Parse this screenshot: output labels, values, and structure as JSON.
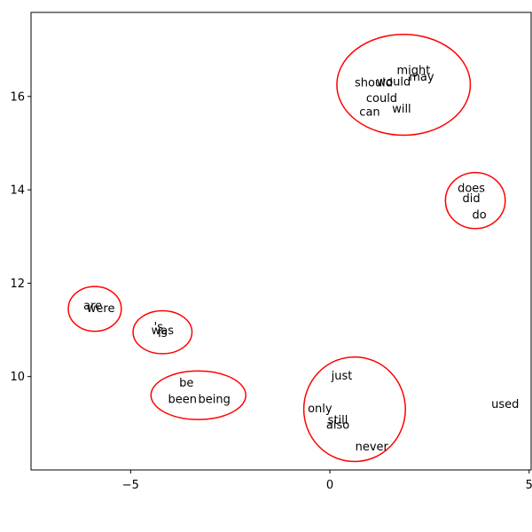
{
  "chart_data": {
    "type": "scatter",
    "title": "",
    "xlabel": "",
    "ylabel": "",
    "xlim": [
      -7.5,
      5.05
    ],
    "ylim": [
      8.0,
      17.8
    ],
    "xticks": [
      -5,
      0,
      5
    ],
    "yticks": [
      10,
      12,
      14,
      16
    ],
    "grid": false,
    "colors": {
      "text": "#000000",
      "cluster_outline": "#ff0000",
      "axes": "#000000",
      "background": "#ffffff"
    },
    "points": [
      {
        "label": "might",
        "x": 2.1,
        "y": 16.55
      },
      {
        "label": "may",
        "x": 2.3,
        "y": 16.4
      },
      {
        "label": "would",
        "x": 1.6,
        "y": 16.3
      },
      {
        "label": "should",
        "x": 1.1,
        "y": 16.28
      },
      {
        "label": "could",
        "x": 1.3,
        "y": 15.95
      },
      {
        "label": "will",
        "x": 1.8,
        "y": 15.72
      },
      {
        "label": "can",
        "x": 1.0,
        "y": 15.65
      },
      {
        "label": "does",
        "x": 3.55,
        "y": 14.02
      },
      {
        "label": "did",
        "x": 3.55,
        "y": 13.8
      },
      {
        "label": "do",
        "x": 3.75,
        "y": 13.45
      },
      {
        "label": "are",
        "x": -5.95,
        "y": 11.5
      },
      {
        "label": "were",
        "x": -5.75,
        "y": 11.45
      },
      {
        "label": "'s",
        "x": -4.3,
        "y": 11.05
      },
      {
        "label": "is",
        "x": -4.2,
        "y": 10.92
      },
      {
        "label": "was",
        "x": -4.2,
        "y": 10.97
      },
      {
        "label": "be",
        "x": -3.6,
        "y": 9.85
      },
      {
        "label": "been",
        "x": -3.7,
        "y": 9.5
      },
      {
        "label": "being",
        "x": -2.9,
        "y": 9.5
      },
      {
        "label": "just",
        "x": 0.3,
        "y": 10.0
      },
      {
        "label": "only",
        "x": -0.25,
        "y": 9.3
      },
      {
        "label": "still",
        "x": 0.2,
        "y": 9.05
      },
      {
        "label": "also",
        "x": 0.2,
        "y": 8.95
      },
      {
        "label": "never",
        "x": 1.05,
        "y": 8.48
      },
      {
        "label": "used",
        "x": 4.4,
        "y": 9.4
      }
    ],
    "clusters": [
      {
        "cx": 1.85,
        "cy": 16.25,
        "rx": 3.35,
        "ry": 1.08
      },
      {
        "cx": 3.65,
        "cy": 13.77,
        "rx": 1.5,
        "ry": 0.6
      },
      {
        "cx": -5.9,
        "cy": 11.45,
        "rx": 1.33,
        "ry": 0.48
      },
      {
        "cx": -4.2,
        "cy": 10.95,
        "rx": 1.48,
        "ry": 0.46
      },
      {
        "cx": -3.3,
        "cy": 9.6,
        "rx": 2.38,
        "ry": 0.52
      },
      {
        "cx": 0.62,
        "cy": 9.3,
        "rx": 2.55,
        "ry": 1.12
      }
    ]
  }
}
